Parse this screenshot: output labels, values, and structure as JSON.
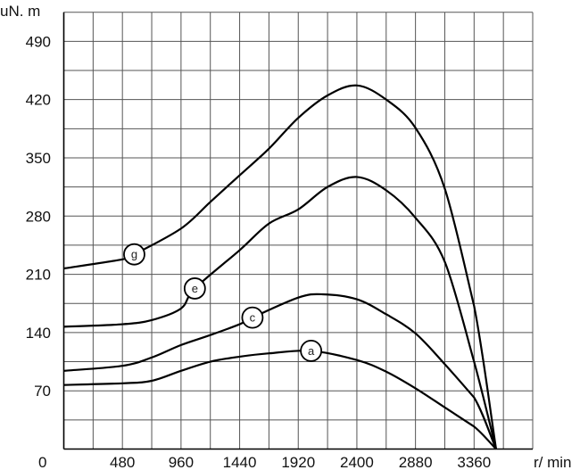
{
  "chart_data": {
    "type": "line",
    "ylabel": "uN. m",
    "xlabel": "r/ min",
    "origin_label": "0",
    "xlim": [
      0,
      3840
    ],
    "ylim": [
      0,
      525
    ],
    "x_grid_step": 240,
    "y_grid_step": 35,
    "grid": true,
    "x_ticks": [
      480,
      960,
      1440,
      1920,
      2400,
      2880,
      3360
    ],
    "y_ticks": [
      70,
      140,
      210,
      280,
      350,
      420,
      490
    ],
    "line_color": "#000000",
    "series": [
      {
        "name": "g",
        "label_at": [
          577,
          234
        ],
        "points": [
          [
            0,
            217
          ],
          [
            480,
            228
          ],
          [
            577,
            234
          ],
          [
            960,
            265
          ],
          [
            1200,
            297
          ],
          [
            1440,
            329
          ],
          [
            1680,
            361
          ],
          [
            1920,
            398
          ],
          [
            2160,
            425
          ],
          [
            2400,
            437
          ],
          [
            2640,
            420
          ],
          [
            2880,
            386
          ],
          [
            3120,
            313
          ],
          [
            3360,
            172
          ],
          [
            3540,
            0
          ]
        ]
      },
      {
        "name": "e",
        "label_at": [
          1073,
          193
        ],
        "points": [
          [
            0,
            147
          ],
          [
            480,
            150
          ],
          [
            720,
            155
          ],
          [
            960,
            169
          ],
          [
            1073,
            193
          ],
          [
            1440,
            239
          ],
          [
            1680,
            271
          ],
          [
            1920,
            288
          ],
          [
            2160,
            315
          ],
          [
            2400,
            327
          ],
          [
            2640,
            311
          ],
          [
            2880,
            278
          ],
          [
            3120,
            225
          ],
          [
            3360,
            105
          ],
          [
            3540,
            0
          ]
        ]
      },
      {
        "name": "c",
        "label_at": [
          1545,
          158
        ],
        "points": [
          [
            0,
            94
          ],
          [
            480,
            100
          ],
          [
            720,
            110
          ],
          [
            960,
            125
          ],
          [
            1200,
            137
          ],
          [
            1440,
            150
          ],
          [
            1545,
            158
          ],
          [
            1920,
            182
          ],
          [
            2120,
            186
          ],
          [
            2400,
            180
          ],
          [
            2640,
            162
          ],
          [
            2880,
            139
          ],
          [
            3120,
            102
          ],
          [
            3360,
            62
          ],
          [
            3540,
            0
          ]
        ]
      },
      {
        "name": "a",
        "label_at": [
          2025,
          118
        ],
        "points": [
          [
            0,
            77
          ],
          [
            480,
            79
          ],
          [
            720,
            82
          ],
          [
            960,
            94
          ],
          [
            1200,
            105
          ],
          [
            1440,
            111
          ],
          [
            1680,
            115
          ],
          [
            2025,
            118
          ],
          [
            2400,
            107
          ],
          [
            2640,
            93
          ],
          [
            2880,
            73
          ],
          [
            3120,
            50
          ],
          [
            3360,
            27
          ],
          [
            3540,
            0
          ]
        ]
      }
    ]
  }
}
